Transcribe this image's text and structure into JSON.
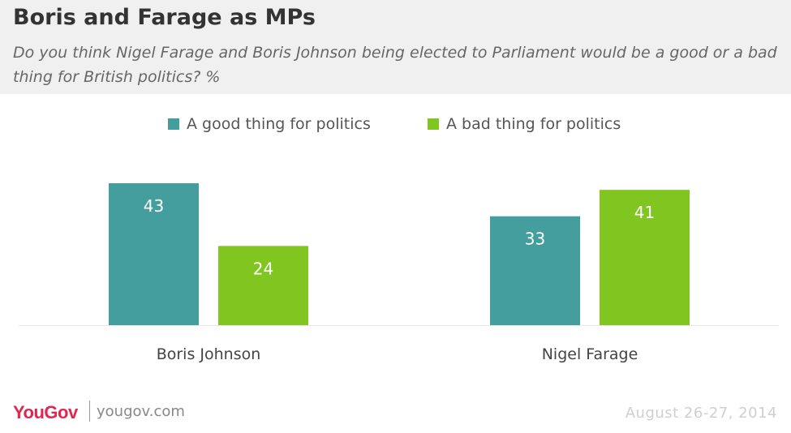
{
  "header": {
    "title": "Boris and Farage as MPs",
    "subtitle": "Do you think Nigel Farage and Boris Johnson being elected to Parliament would be a good or a bad thing for British politics? %"
  },
  "chart_data": {
    "type": "bar",
    "categories": [
      "Boris Johnson",
      "Nigel Farage"
    ],
    "series": [
      {
        "name": "A good thing for politics",
        "values": [
          43,
          33
        ],
        "color": "#459e9e"
      },
      {
        "name": "A bad thing for politics",
        "values": [
          24,
          41
        ],
        "color": "#80c520"
      }
    ],
    "ylim": [
      0,
      43
    ],
    "grid": false,
    "legend": "top-center",
    "data_labels": true
  },
  "footer": {
    "logo": "YouGov",
    "url": "yougov.com",
    "date": "August 26-27, 2014"
  },
  "colors": {
    "header_bg": "#f0f0f0",
    "logo": "#e0284f",
    "good": "#459e9e",
    "bad": "#80c520"
  }
}
